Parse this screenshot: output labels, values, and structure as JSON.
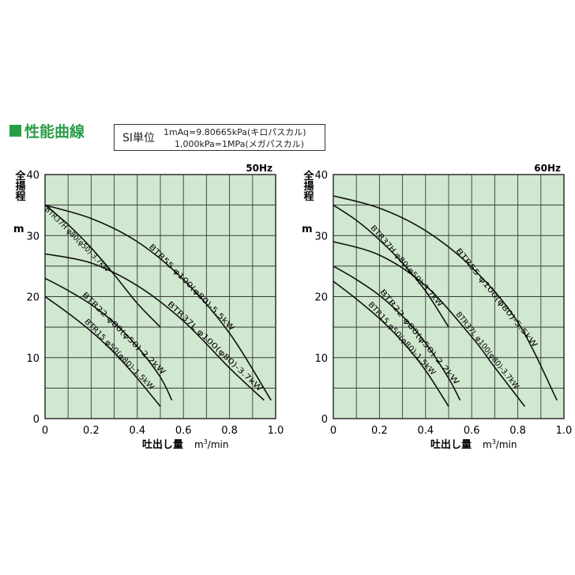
{
  "heading": "性能曲線",
  "si_box": {
    "label": "SI単位",
    "line1": "1mAq=9.80665kPa(キロパスカル)",
    "line2": "1,000kPa=1MPa(メガパスカル)"
  },
  "colors": {
    "plot_bg": "#cfe8cf",
    "grid": "#3a3a3a",
    "curve": "#111111",
    "heading": "#2a9d48"
  },
  "chart_data": [
    {
      "type": "line",
      "title": "50Hz",
      "xlabel": "吐出し量",
      "xunit": "m3/min",
      "ylabel": "全揚程",
      "yunit": "m",
      "xlim": [
        0,
        1.0
      ],
      "ylim": [
        0,
        40
      ],
      "xticks": [
        "0",
        "0.2",
        "0.4",
        "0.6",
        "0.8",
        "1.0"
      ],
      "yticks": [
        "0",
        "10",
        "20",
        "30",
        "40"
      ],
      "grid": true,
      "series": [
        {
          "name": "BTR15 φ50(φ80)-1.5kW",
          "x": [
            0,
            0.1,
            0.2,
            0.3,
            0.4,
            0.5
          ],
          "y": [
            20,
            17.3,
            14.3,
            10.8,
            6.6,
            2.0
          ]
        },
        {
          "name": "BTR22 φ80(φ50)-2.2kW",
          "x": [
            0,
            0.1,
            0.2,
            0.3,
            0.4,
            0.5,
            0.55
          ],
          "y": [
            23,
            21,
            18.7,
            15.7,
            11.8,
            6.8,
            3.0
          ]
        },
        {
          "name": "BTR37H φ80(φ50)-3.7kW",
          "x": [
            0,
            0.1,
            0.2,
            0.3,
            0.4,
            0.5
          ],
          "y": [
            35,
            31.8,
            28.0,
            23.6,
            18.9,
            15.0
          ]
        },
        {
          "name": "BTR37L φ100(φ80)-3.7kW",
          "x": [
            0,
            0.2,
            0.4,
            0.6,
            0.8,
            0.95
          ],
          "y": [
            27,
            25.5,
            21.8,
            16.0,
            8.3,
            3.0
          ]
        },
        {
          "name": "BTR55 φ100(φ80)-5.5kW",
          "x": [
            0,
            0.2,
            0.4,
            0.6,
            0.8,
            0.98
          ],
          "y": [
            35,
            32.8,
            29.0,
            22.8,
            14.0,
            3.0
          ]
        }
      ]
    },
    {
      "type": "line",
      "title": "60Hz",
      "xlabel": "吐出し量",
      "xunit": "m3/min",
      "ylabel": "全揚程",
      "yunit": "m",
      "xlim": [
        0,
        1.0
      ],
      "ylim": [
        0,
        40
      ],
      "xticks": [
        "0",
        "0.2",
        "0.4",
        "0.6",
        "0.8",
        "1.0"
      ],
      "yticks": [
        "0",
        "10",
        "20",
        "30",
        "40"
      ],
      "grid": true,
      "series": [
        {
          "name": "BTR15 φ50(φ80)-1.5kW",
          "x": [
            0,
            0.1,
            0.2,
            0.3,
            0.4,
            0.5
          ],
          "y": [
            22.5,
            19.6,
            16.4,
            12.6,
            7.9,
            2.0
          ]
        },
        {
          "name": "BTR22 φ80(φ50)-2.2kW",
          "x": [
            0,
            0.1,
            0.2,
            0.3,
            0.4,
            0.5,
            0.55
          ],
          "y": [
            25,
            22.8,
            20.2,
            16.8,
            12.4,
            6.6,
            3.0
          ]
        },
        {
          "name": "BTR37H φ80(φ50)-3.7kW",
          "x": [
            0,
            0.1,
            0.2,
            0.3,
            0.4,
            0.5
          ],
          "y": [
            35,
            32.5,
            29.3,
            25.5,
            20.9,
            15.0
          ]
        },
        {
          "name": "BTR37L φ100(φ80)-3.7kW",
          "x": [
            0,
            0.2,
            0.4,
            0.6,
            0.7,
            0.83
          ],
          "y": [
            29,
            26.8,
            21.8,
            13.4,
            8.4,
            2.0
          ]
        },
        {
          "name": "BTR55 φ100(φ80)-5.5kW",
          "x": [
            0,
            0.2,
            0.4,
            0.6,
            0.8,
            0.97
          ],
          "y": [
            36.5,
            34.5,
            30.8,
            24.8,
            15.8,
            3.0
          ]
        }
      ]
    }
  ]
}
